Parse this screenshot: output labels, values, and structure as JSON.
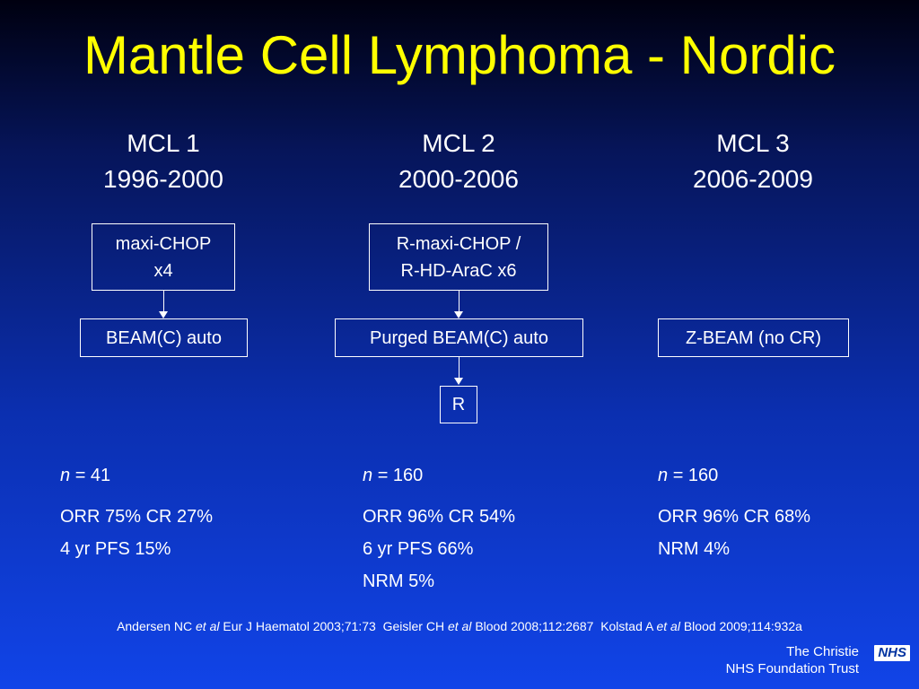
{
  "title": "Mantle Cell Lymphoma - Nordic",
  "columns": [
    {
      "name": "MCL 1",
      "years": "1996-2000",
      "induction": [
        "maxi-CHOP",
        "x4"
      ],
      "consolidation": "BEAM(C) auto",
      "maintenance": "",
      "n_label": "n",
      "n_value": "= 41",
      "results": [
        "ORR 75% CR 27%",
        "4 yr PFS 15%"
      ]
    },
    {
      "name": "MCL 2",
      "years": "2000-2006",
      "induction": [
        "R-maxi-CHOP /",
        "R-HD-AraC x6"
      ],
      "consolidation": "Purged BEAM(C) auto",
      "maintenance": "R",
      "n_label": "n",
      "n_value": "= 160",
      "results": [
        "ORR 96% CR 54%",
        "6 yr PFS 66%",
        "NRM 5%"
      ]
    },
    {
      "name": "MCL 3",
      "years": "2006-2009",
      "induction": [],
      "consolidation": "Z-BEAM (no CR)",
      "maintenance": "",
      "n_label": "n",
      "n_value": "= 160",
      "results": [
        "ORR 96% CR 68%",
        "NRM 4%"
      ]
    }
  ],
  "references": {
    "r1_author": "Andersen NC",
    "r1_etal": "et al",
    "r1_source": "Eur J Haematol 2003;71:73",
    "r2_author": "Geisler CH",
    "r2_etal": "et al",
    "r2_source": "Blood 2008;112:2687",
    "r3_author": "Kolstad A",
    "r3_etal": "et al",
    "r3_source": "Blood 2009;114:932a"
  },
  "footer": {
    "org_line1": "The Christie",
    "org_line2": "NHS Foundation Trust",
    "logo_text": "NHS"
  },
  "colors": {
    "title": "#ffff00",
    "text": "#ffffff",
    "background_top": "#000010",
    "background_bottom": "#1144e8",
    "nhs_blue": "#0033a0"
  }
}
